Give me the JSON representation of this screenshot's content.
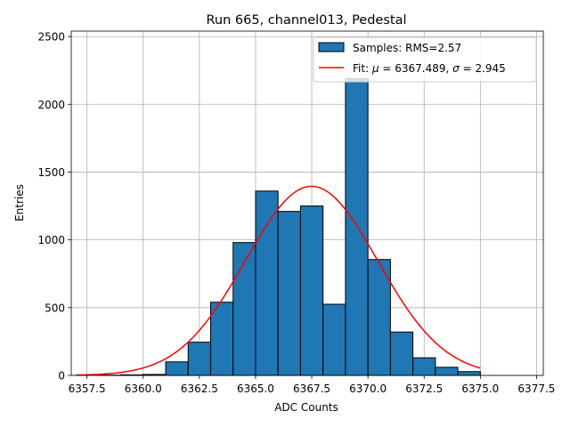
{
  "chart_data": {
    "type": "bar",
    "title": "Run 665, channel013, Pedestal",
    "xlabel": "ADC Counts",
    "ylabel": "Entries",
    "xlim": [
      6356.8,
      6377.8
    ],
    "ylim": [
      0,
      2540
    ],
    "grid": true,
    "legend_position": "top-right",
    "x_ticks": [
      6357.5,
      6360.0,
      6362.5,
      6365.0,
      6367.5,
      6370.0,
      6372.5,
      6375.0,
      6377.5
    ],
    "x_tick_labels": [
      "6357.5",
      "6360.0",
      "6362.5",
      "6365.0",
      "6367.5",
      "6370.0",
      "6372.5",
      "6375.0",
      "6377.5"
    ],
    "y_ticks": [
      0,
      500,
      1000,
      1500,
      2000,
      2500
    ],
    "y_tick_labels": [
      "0",
      "500",
      "1000",
      "1500",
      "2000",
      "2500"
    ],
    "histogram": {
      "name": "Samples: RMS=2.57",
      "bin_edges": [
        6357,
        6358,
        6359,
        6360,
        6361,
        6362,
        6363,
        6364,
        6365,
        6366,
        6367,
        6368,
        6369,
        6370,
        6371,
        6372,
        6373,
        6374,
        6375
      ],
      "counts": [
        0,
        2,
        4,
        7,
        100,
        245,
        540,
        980,
        1360,
        1210,
        1250,
        525,
        2190,
        855,
        320,
        130,
        60,
        28
      ],
      "color": "#1f77b4",
      "edge_color": "#000000"
    },
    "fit": {
      "label_prefix": "Fit: ",
      "mu_symbol": "μ",
      "mu_text": " = 6367.489, ",
      "sigma_symbol": "σ",
      "sigma_text": " = 2.945",
      "mu": 6367.489,
      "sigma": 2.945,
      "amplitude": 1395,
      "x_range": [
        6357,
        6375
      ],
      "color": "#ff0000"
    }
  }
}
